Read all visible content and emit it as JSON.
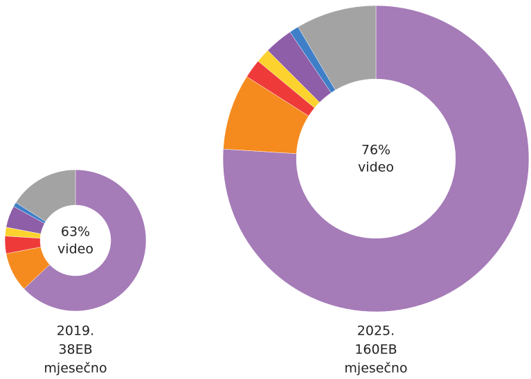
{
  "chart_data": [
    {
      "type": "pie",
      "donut": true,
      "values": [
        63,
        9,
        4,
        2,
        5,
        1,
        16
      ],
      "value_labels": [
        "63%",
        null,
        null,
        null,
        null,
        null,
        null
      ],
      "colors": [
        "#a57bb8",
        "#f58b1f",
        "#ee3b3a",
        "#fcd22e",
        "#8e5ea8",
        "#3f7fc8",
        "#a3a3a3"
      ],
      "center_text": "video",
      "caption": [
        "2019.",
        "38EB",
        "mjesečno"
      ]
    },
    {
      "type": "pie",
      "donut": true,
      "values": [
        76,
        8,
        2,
        1.5,
        3,
        1,
        8.5
      ],
      "value_labels": [
        "76%",
        null,
        null,
        null,
        null,
        null,
        null
      ],
      "colors": [
        "#a57bb8",
        "#f58b1f",
        "#ee3b3a",
        "#fcd22e",
        "#8e5ea8",
        "#3f7fc8",
        "#a3a3a3"
      ],
      "center_text": "video",
      "caption": [
        "2025.",
        "160EB",
        "mjesečno"
      ]
    }
  ]
}
